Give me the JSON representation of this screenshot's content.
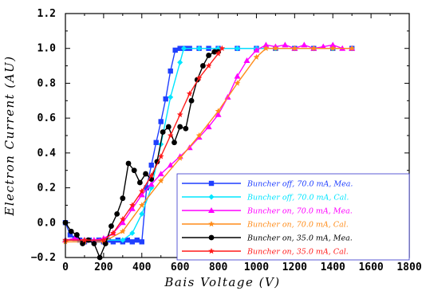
{
  "chart_data": {
    "type": "line",
    "xlabel": "Bais Voltage (V)",
    "ylabel": "Electron Current (AU)",
    "xlim": [
      0,
      1800
    ],
    "ylim": [
      -0.2,
      1.2
    ],
    "x_ticks": [
      "0",
      "200",
      "400",
      "600",
      "800",
      "1000",
      "1200",
      "1400",
      "1600",
      "1800"
    ],
    "y_ticks": [
      "−0.2",
      "0.0",
      "0.2",
      "0.4",
      "0.6",
      "0.8",
      "1.0",
      "1.2"
    ],
    "x_tick_values": [
      0,
      200,
      400,
      600,
      800,
      1000,
      1200,
      1400,
      1600,
      1800
    ],
    "y_tick_values": [
      -0.2,
      0.0,
      0.2,
      0.4,
      0.6,
      0.8,
      1.0,
      1.2
    ],
    "grid": false,
    "legend_position": "bottom-right",
    "series": [
      {
        "name": "Buncher off, 70.0 mA, Mea.",
        "color": "#1f3fff",
        "marker": "square",
        "x": [
          0,
          25,
          50,
          75,
          100,
          125,
          150,
          175,
          200,
          225,
          250,
          275,
          300,
          325,
          350,
          375,
          400,
          425,
          450,
          475,
          500,
          525,
          550,
          575,
          600,
          625,
          650,
          700,
          750,
          800,
          900,
          1000,
          1100,
          1200,
          1300,
          1400,
          1500
        ],
        "y": [
          0.0,
          -0.07,
          -0.09,
          -0.1,
          -0.11,
          -0.1,
          -0.11,
          -0.1,
          -0.11,
          -0.1,
          -0.11,
          -0.1,
          -0.11,
          -0.1,
          -0.11,
          -0.1,
          -0.11,
          0.2,
          0.33,
          0.46,
          0.58,
          0.71,
          0.87,
          0.99,
          1.0,
          1.0,
          1.0,
          1.0,
          1.0,
          1.0,
          1.0,
          1.0,
          1.0,
          1.0,
          1.0,
          1.0,
          1.0
        ]
      },
      {
        "name": "Buncher off, 70.0 mA, Cal.",
        "color": "#00e5ff",
        "marker": "diamond",
        "x": [
          0,
          100,
          200,
          300,
          350,
          400,
          450,
          500,
          550,
          600,
          620,
          700,
          800,
          900,
          1000,
          1100,
          1200,
          1300,
          1400,
          1500
        ],
        "y": [
          -0.1,
          -0.1,
          -0.1,
          -0.1,
          -0.06,
          0.05,
          0.2,
          0.45,
          0.72,
          0.92,
          1.0,
          1.0,
          1.0,
          1.0,
          1.0,
          1.0,
          1.0,
          1.0,
          1.0,
          1.0
        ]
      },
      {
        "name": "Buncher on, 70.0 mA, Mea.",
        "color": "#ff00ff",
        "marker": "triangle",
        "x": [
          0,
          50,
          100,
          150,
          200,
          250,
          300,
          350,
          400,
          450,
          500,
          550,
          600,
          650,
          700,
          750,
          800,
          850,
          900,
          950,
          1000,
          1050,
          1100,
          1150,
          1200,
          1250,
          1300,
          1350,
          1400,
          1450,
          1500
        ],
        "y": [
          -0.1,
          -0.09,
          -0.1,
          -0.1,
          -0.09,
          -0.06,
          0.0,
          0.08,
          0.16,
          0.22,
          0.28,
          0.33,
          0.38,
          0.43,
          0.49,
          0.55,
          0.62,
          0.72,
          0.84,
          0.93,
          0.99,
          1.02,
          1.01,
          1.02,
          1.0,
          1.02,
          1.0,
          1.01,
          1.02,
          1.0,
          1.0
        ]
      },
      {
        "name": "Buncher on, 70.0 mA, Cal.",
        "color": "#ff8c1a",
        "marker": "star",
        "x": [
          0,
          100,
          200,
          300,
          400,
          500,
          600,
          700,
          800,
          900,
          1000,
          1050,
          1100,
          1200,
          1300,
          1400,
          1500
        ],
        "y": [
          -0.11,
          -0.11,
          -0.11,
          -0.05,
          0.1,
          0.24,
          0.37,
          0.5,
          0.64,
          0.8,
          0.95,
          1.0,
          1.0,
          1.0,
          1.0,
          1.0,
          1.0
        ]
      },
      {
        "name": "Buncher on, 35.0 mA, Mea.",
        "color": "#000000",
        "marker": "circle",
        "x": [
          0,
          30,
          60,
          90,
          120,
          150,
          180,
          210,
          240,
          270,
          300,
          330,
          360,
          390,
          420,
          450,
          480,
          510,
          540,
          570,
          600,
          630,
          660,
          690,
          720,
          750,
          780,
          800
        ],
        "y": [
          0.0,
          -0.05,
          -0.07,
          -0.12,
          -0.1,
          -0.12,
          -0.2,
          -0.12,
          -0.02,
          0.05,
          0.14,
          0.34,
          0.3,
          0.23,
          0.28,
          0.25,
          0.35,
          0.52,
          0.55,
          0.46,
          0.55,
          0.54,
          0.7,
          0.82,
          0.9,
          0.96,
          0.98,
          0.98
        ]
      },
      {
        "name": "Buncher on, 35.0 mA, Cal.",
        "color": "#ff1a1a",
        "marker": "star",
        "x": [
          0,
          100,
          200,
          250,
          300,
          350,
          400,
          450,
          500,
          550,
          600,
          650,
          700,
          750,
          800,
          820
        ],
        "y": [
          -0.1,
          -0.1,
          -0.1,
          -0.06,
          0.02,
          0.1,
          0.18,
          0.27,
          0.38,
          0.5,
          0.62,
          0.74,
          0.83,
          0.9,
          0.97,
          1.0
        ]
      }
    ]
  }
}
